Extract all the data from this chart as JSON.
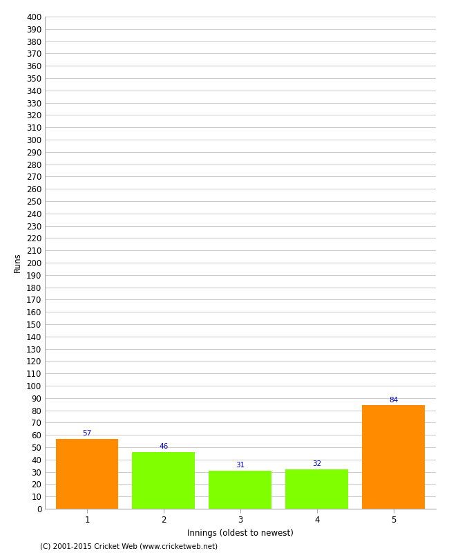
{
  "categories": [
    "1",
    "2",
    "3",
    "4",
    "5"
  ],
  "values": [
    57,
    46,
    31,
    32,
    84
  ],
  "bar_colors": [
    "#ff8c00",
    "#7fff00",
    "#7fff00",
    "#7fff00",
    "#ff8c00"
  ],
  "xlabel": "Innings (oldest to newest)",
  "ylabel": "Runs",
  "ylim": [
    0,
    400
  ],
  "ytick_step": 10,
  "value_label_color": "#0000cc",
  "value_label_fontsize": 7.5,
  "axis_label_fontsize": 8.5,
  "tick_label_fontsize": 8.5,
  "background_color": "#ffffff",
  "grid_color": "#cccccc",
  "footer": "(C) 2001-2015 Cricket Web (www.cricketweb.net)",
  "bar_width": 0.82
}
